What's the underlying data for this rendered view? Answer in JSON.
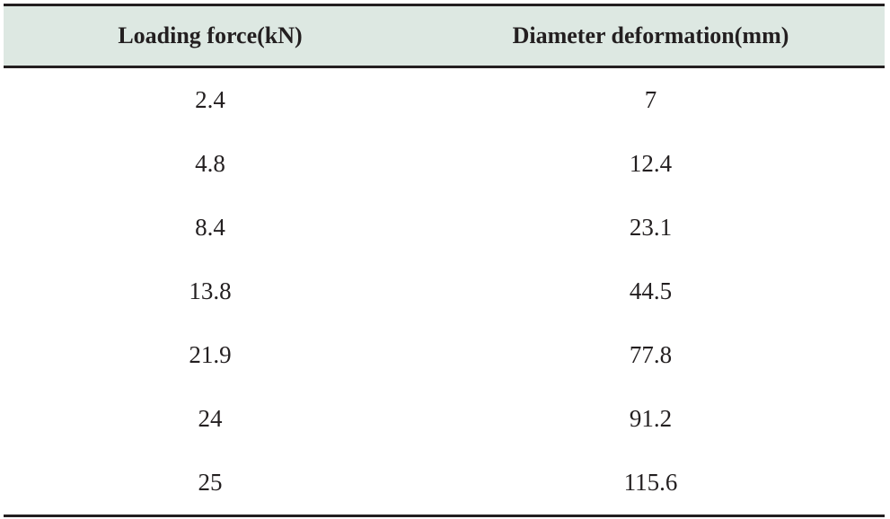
{
  "table": {
    "headers": [
      "Loading force(kN)",
      "Diameter deformation(mm)"
    ],
    "rows": [
      [
        "2.4",
        "7"
      ],
      [
        "4.8",
        "12.4"
      ],
      [
        "8.4",
        "23.1"
      ],
      [
        "13.8",
        "44.5"
      ],
      [
        "21.9",
        "77.8"
      ],
      [
        "24",
        "91.2"
      ],
      [
        "25",
        "115.6"
      ]
    ]
  },
  "colors": {
    "header_background": "#dde8e2",
    "rule": "#231f20",
    "text": "#231f20"
  }
}
